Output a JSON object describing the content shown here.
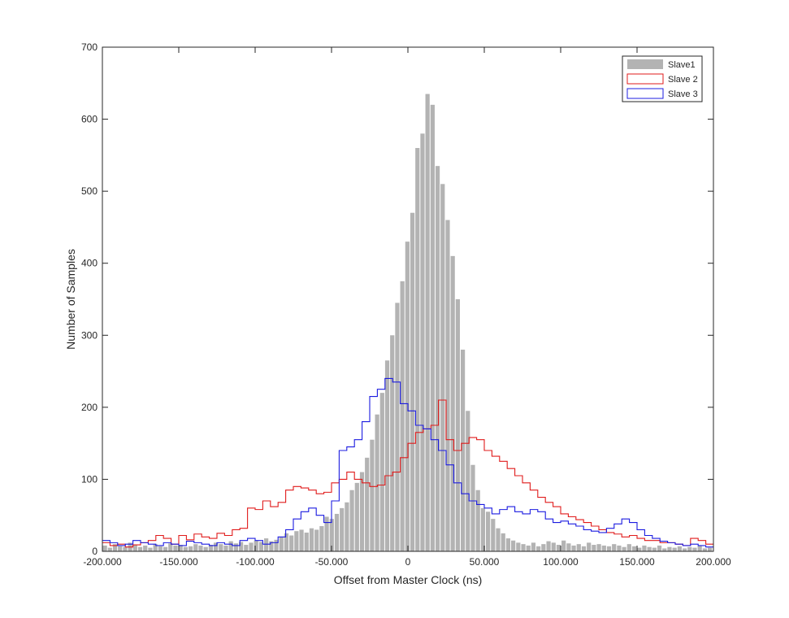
{
  "chart_data": {
    "type": "histogram",
    "xlabel": "Offset from Master Clock (ns)",
    "ylabel": "Number  of Samples",
    "xlim": [
      -200,
      200
    ],
    "ylim": [
      0,
      700
    ],
    "x_ticks": [
      -200,
      -150,
      -100,
      -50,
      0,
      50,
      100,
      150,
      200
    ],
    "x_tick_labels": [
      "-200.000",
      "-150.000",
      "-100.000",
      "-50.000",
      "0",
      "50.000",
      "100.000",
      "150.000",
      "200.000"
    ],
    "y_ticks": [
      0,
      100,
      200,
      300,
      400,
      500,
      600,
      700
    ],
    "y_tick_labels": [
      "0",
      "100",
      "200",
      "300",
      "400",
      "500",
      "600",
      "700"
    ],
    "grid": false,
    "legend_position": "top-right",
    "bin_width": 3.3,
    "series": [
      {
        "name": "Slave1",
        "style": "filled-bars",
        "color": "#b3b3b3",
        "bin_starts": [
          -200,
          -196.7,
          -193.4,
          -190.1,
          -186.8,
          -183.5,
          -180.2,
          -176.9,
          -173.6,
          -170.3,
          -167,
          -163.7,
          -160.4,
          -157.1,
          -153.8,
          -150.5,
          -147.2,
          -143.9,
          -140.6,
          -137.3,
          -134,
          -130.7,
          -127.4,
          -124.1,
          -120.8,
          -117.5,
          -114.2,
          -110.9,
          -107.6,
          -104.3,
          -101,
          -97.7,
          -94.4,
          -91.1,
          -87.8,
          -84.5,
          -81.2,
          -77.9,
          -74.6,
          -71.3,
          -68,
          -64.7,
          -61.4,
          -58.1,
          -54.8,
          -51.5,
          -48.2,
          -44.9,
          -41.6,
          -38.3,
          -35,
          -31.7,
          -28.4,
          -25.1,
          -21.8,
          -18.5,
          -15.2,
          -11.9,
          -8.6,
          -5.3,
          -2,
          1.3,
          4.6,
          7.9,
          11.2,
          14.5,
          17.8,
          21.1,
          24.4,
          27.7,
          31,
          34.3,
          37.6,
          40.9,
          44.2,
          47.5,
          50.8,
          54.1,
          57.4,
          60.7,
          64,
          67.3,
          70.6,
          73.9,
          77.2,
          80.5,
          83.8,
          87.1,
          90.4,
          93.7,
          97,
          100.3,
          103.6,
          106.9,
          110.2,
          113.5,
          116.8,
          120.1,
          123.4,
          126.7,
          130,
          133.3,
          136.6,
          139.9,
          143.2,
          146.5,
          149.8,
          153.1,
          156.4,
          159.7,
          163,
          166.3,
          169.6,
          172.9,
          176.2,
          179.5,
          182.8,
          186.1,
          189.4,
          192.7,
          196
        ],
        "counts": [
          8,
          5,
          10,
          7,
          6,
          12,
          9,
          6,
          8,
          5,
          10,
          7,
          6,
          11,
          8,
          9,
          6,
          7,
          10,
          8,
          6,
          9,
          12,
          10,
          8,
          14,
          11,
          13,
          9,
          12,
          15,
          13,
          18,
          14,
          16,
          20,
          25,
          22,
          28,
          30,
          26,
          32,
          30,
          35,
          48,
          45,
          52,
          60,
          68,
          85,
          95,
          110,
          130,
          155,
          190,
          220,
          265,
          300,
          345,
          375,
          430,
          470,
          560,
          580,
          635,
          620,
          535,
          510,
          460,
          410,
          350,
          280,
          195,
          120,
          85,
          60,
          55,
          45,
          32,
          25,
          18,
          15,
          12,
          10,
          8,
          12,
          7,
          10,
          14,
          12,
          9,
          15,
          11,
          8,
          10,
          7,
          12,
          9,
          10,
          8,
          7,
          10,
          8,
          6,
          10,
          7,
          5,
          8,
          6,
          5,
          8,
          4,
          6,
          5,
          7,
          4,
          6,
          5,
          8,
          4,
          5
        ]
      },
      {
        "name": "Slave 2",
        "style": "stairs",
        "color": "#e01b1b",
        "x": [
          -200,
          -195,
          -190,
          -185,
          -180,
          -175,
          -170,
          -165,
          -160,
          -155,
          -150,
          -145,
          -140,
          -135,
          -130,
          -125,
          -120,
          -115,
          -110,
          -105,
          -100,
          -95,
          -90,
          -85,
          -80,
          -75,
          -70,
          -65,
          -60,
          -55,
          -50,
          -45,
          -40,
          -35,
          -30,
          -25,
          -20,
          -15,
          -10,
          -5,
          0,
          5,
          10,
          15,
          20,
          25,
          30,
          35,
          40,
          45,
          50,
          55,
          60,
          65,
          70,
          75,
          80,
          85,
          90,
          95,
          100,
          105,
          110,
          115,
          120,
          125,
          130,
          135,
          140,
          145,
          150,
          155,
          160,
          165,
          170,
          175,
          180,
          185,
          190,
          195
        ],
        "y": [
          12,
          8,
          10,
          6,
          9,
          12,
          15,
          22,
          18,
          10,
          22,
          16,
          24,
          20,
          18,
          25,
          22,
          30,
          32,
          60,
          58,
          70,
          62,
          68,
          85,
          90,
          88,
          85,
          80,
          82,
          95,
          100,
          110,
          100,
          95,
          90,
          92,
          105,
          110,
          130,
          150,
          165,
          170,
          175,
          210,
          155,
          140,
          150,
          158,
          155,
          140,
          132,
          125,
          115,
          105,
          95,
          85,
          75,
          68,
          62,
          52,
          48,
          44,
          40,
          35,
          30,
          26,
          24,
          20,
          22,
          18,
          15,
          15,
          12,
          12,
          10,
          8,
          18,
          15,
          10
        ]
      },
      {
        "name": "Slave 3",
        "style": "stairs",
        "color": "#1c1ce0",
        "x": [
          -200,
          -195,
          -190,
          -185,
          -180,
          -175,
          -170,
          -165,
          -160,
          -155,
          -150,
          -145,
          -140,
          -135,
          -130,
          -125,
          -120,
          -115,
          -110,
          -105,
          -100,
          -95,
          -90,
          -85,
          -80,
          -75,
          -70,
          -65,
          -60,
          -55,
          -50,
          -45,
          -40,
          -35,
          -30,
          -25,
          -20,
          -15,
          -10,
          -5,
          0,
          5,
          10,
          15,
          20,
          25,
          30,
          35,
          40,
          45,
          50,
          55,
          60,
          65,
          70,
          75,
          80,
          85,
          90,
          95,
          100,
          105,
          110,
          115,
          120,
          125,
          130,
          135,
          140,
          145,
          150,
          155,
          160,
          165,
          170,
          175,
          180,
          185,
          190,
          195
        ],
        "y": [
          15,
          12,
          8,
          10,
          15,
          12,
          10,
          8,
          12,
          10,
          8,
          14,
          12,
          10,
          8,
          12,
          10,
          8,
          15,
          18,
          15,
          10,
          12,
          20,
          30,
          45,
          55,
          60,
          50,
          40,
          70,
          140,
          145,
          155,
          180,
          215,
          225,
          240,
          235,
          205,
          195,
          175,
          170,
          155,
          140,
          120,
          95,
          80,
          70,
          65,
          60,
          52,
          58,
          62,
          55,
          52,
          58,
          55,
          45,
          40,
          42,
          38,
          35,
          30,
          28,
          26,
          32,
          38,
          45,
          40,
          30,
          22,
          18,
          14,
          12,
          10,
          8,
          10,
          8,
          6
        ]
      }
    ]
  }
}
